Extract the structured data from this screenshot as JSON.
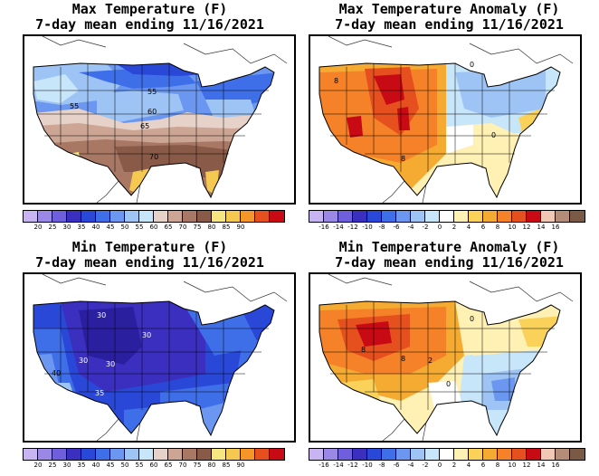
{
  "panels": [
    {
      "id": "max-temp",
      "title1": "Max Temperature (F)",
      "title2": "7-day mean ending 11/16/2021",
      "type": "temp",
      "contour_labels": [
        "55",
        "55",
        "60",
        "65",
        "70"
      ],
      "colorbar": {
        "colors": [
          "#c8b4f0",
          "#9b87e6",
          "#6f5fdc",
          "#3a2fbf",
          "#2a48d8",
          "#3f6fe8",
          "#6b97f0",
          "#9ec4f5",
          "#c8e6fa",
          "#e6d2c8",
          "#cda594",
          "#a87865",
          "#8a5a48",
          "#f5e682",
          "#f5c850",
          "#f59628",
          "#e6501e",
          "#c80a14"
        ],
        "labels": [
          "20",
          "25",
          "30",
          "35",
          "40",
          "45",
          "50",
          "55",
          "60",
          "65",
          "70",
          "75",
          "80",
          "85",
          "90"
        ]
      }
    },
    {
      "id": "max-anom",
      "title1": "Max Temperature Anomaly (F)",
      "title2": "7-day mean ending 11/16/2021",
      "type": "anom",
      "contour_labels": [
        "0",
        "8",
        "8",
        "0"
      ],
      "colorbar": {
        "colors": [
          "#c8b4f0",
          "#9b87e6",
          "#6f5fdc",
          "#3a2fbf",
          "#2a48d8",
          "#3f6fe8",
          "#6b97f0",
          "#9ec4f5",
          "#c8e6fa",
          "#ffffff",
          "#fff0b4",
          "#fad25a",
          "#f5aa32",
          "#f58228",
          "#e6501e",
          "#c80a14",
          "#f0c8b4",
          "#b48c78",
          "#7a5a46"
        ],
        "labels": [
          "-16",
          "-14",
          "-12",
          "-10",
          "-8",
          "-6",
          "-4",
          "-2",
          "0",
          "2",
          "4",
          "6",
          "8",
          "10",
          "12",
          "14",
          "16"
        ]
      }
    },
    {
      "id": "min-temp",
      "title1": "Min Temperature (F)",
      "title2": "7-day mean ending 11/16/2021",
      "type": "cold",
      "contour_labels": [
        "30",
        "30",
        "30",
        "30",
        "40",
        "35"
      ],
      "colorbar": {
        "colors": [
          "#c8b4f0",
          "#9b87e6",
          "#6f5fdc",
          "#3a2fbf",
          "#2a48d8",
          "#3f6fe8",
          "#6b97f0",
          "#9ec4f5",
          "#c8e6fa",
          "#e6d2c8",
          "#cda594",
          "#a87865",
          "#8a5a48",
          "#f5e682",
          "#f5c850",
          "#f59628",
          "#e6501e",
          "#c80a14"
        ],
        "labels": [
          "20",
          "25",
          "30",
          "35",
          "40",
          "45",
          "50",
          "55",
          "60",
          "65",
          "70",
          "75",
          "80",
          "85",
          "90"
        ]
      }
    },
    {
      "id": "min-anom",
      "title1": "Min Temperature Anomaly (F)",
      "title2": "7-day mean ending 11/16/2021",
      "type": "minanom",
      "contour_labels": [
        "0",
        "8",
        "8",
        "2",
        "0"
      ],
      "colorbar": {
        "colors": [
          "#c8b4f0",
          "#9b87e6",
          "#6f5fdc",
          "#3a2fbf",
          "#2a48d8",
          "#3f6fe8",
          "#6b97f0",
          "#9ec4f5",
          "#c8e6fa",
          "#ffffff",
          "#fff0b4",
          "#fad25a",
          "#f5aa32",
          "#f58228",
          "#e6501e",
          "#c80a14",
          "#f0c8b4",
          "#b48c78",
          "#7a5a46"
        ],
        "labels": [
          "-16",
          "-14",
          "-12",
          "-10",
          "-8",
          "-6",
          "-4",
          "-2",
          "0",
          "2",
          "4",
          "6",
          "8",
          "10",
          "12",
          "14",
          "16"
        ]
      }
    }
  ]
}
